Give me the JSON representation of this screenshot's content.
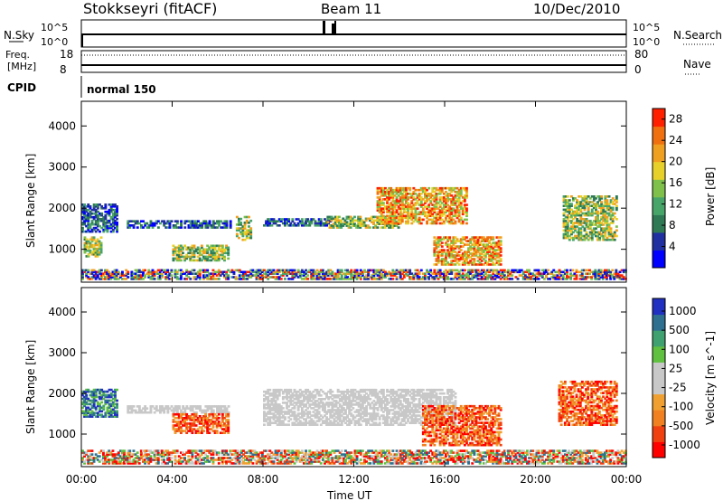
{
  "header": {
    "station": "Stokkseyri (fitACF)",
    "beam": "Beam 11",
    "date": "10/Dec/2010"
  },
  "top_panels": {
    "nsky_label": "N.Sky",
    "nsearch_label": "N.Search",
    "nsky_ticks": [
      "10^5",
      "10^0"
    ],
    "nsearch_ticks": [
      "10^5",
      "10^0"
    ],
    "freq_label_1": "Freq.",
    "freq_label_2": "[MHz]",
    "freq_ticks": [
      "18",
      "8"
    ],
    "nave_label": "Nave",
    "nave_ticks": [
      "80",
      "0"
    ],
    "cpid_label": "CPID",
    "cpid_value": "normal 150"
  },
  "colors": {
    "power_scale": [
      "#0000ff",
      "#2030a0",
      "#2f7a55",
      "#48a56a",
      "#7fc04a",
      "#e8d02a",
      "#f0a020",
      "#f07010",
      "#ff2000"
    ],
    "velocity_scale": [
      "#ff0000",
      "#f04010",
      "#f08020",
      "#f0a030",
      "#c8c8c8",
      "#c8c8c8",
      "#60c040",
      "#3fa070",
      "#2f7090",
      "#2030c0"
    ]
  },
  "chart_data": [
    {
      "type": "heatmap",
      "title": "",
      "xlabel": "",
      "ylabel": "Slant Range [km]",
      "y_ticks": [
        "1000",
        "2000",
        "3000",
        "4000"
      ],
      "ylim": [
        200,
        4600
      ],
      "xlim_hours": [
        0,
        24
      ],
      "colorbar_label": "Power [dB]",
      "colorbar_ticks": [
        "4",
        "8",
        "12",
        "16",
        "20",
        "24",
        "28"
      ],
      "colorbar_range": [
        0,
        30
      ],
      "regions": [
        {
          "t0": 0.0,
          "t1": 1.6,
          "r0": 1400,
          "r1": 2100,
          "level": "low"
        },
        {
          "t0": 0.1,
          "t1": 0.9,
          "r0": 800,
          "r1": 1300,
          "level": "mid"
        },
        {
          "t0": 2.0,
          "t1": 6.6,
          "r0": 1500,
          "r1": 1700,
          "level": "low"
        },
        {
          "t0": 4.0,
          "t1": 6.5,
          "r0": 700,
          "r1": 1100,
          "level": "mid"
        },
        {
          "t0": 6.8,
          "t1": 7.5,
          "r0": 1200,
          "r1": 1800,
          "level": "mid"
        },
        {
          "t0": 8.0,
          "t1": 11.0,
          "r0": 1550,
          "r1": 1750,
          "level": "low"
        },
        {
          "t0": 10.8,
          "t1": 14.0,
          "r0": 1500,
          "r1": 1800,
          "level": "mid"
        },
        {
          "t0": 13.0,
          "t1": 17.0,
          "r0": 1600,
          "r1": 2500,
          "level": "high"
        },
        {
          "t0": 15.5,
          "t1": 18.5,
          "r0": 600,
          "r1": 1300,
          "level": "high"
        },
        {
          "t0": 21.2,
          "t1": 23.6,
          "r0": 1200,
          "r1": 2300,
          "level": "mid"
        },
        {
          "t0": 0.0,
          "t1": 24.0,
          "r0": 250,
          "r1": 500,
          "level": "mixed"
        }
      ]
    },
    {
      "type": "heatmap",
      "title": "",
      "xlabel": "Time UT",
      "ylabel": "Slant Range [km]",
      "y_ticks": [
        "1000",
        "2000",
        "3000",
        "4000"
      ],
      "ylim": [
        200,
        4600
      ],
      "x_ticks": [
        "00:00",
        "04:00",
        "08:00",
        "12:00",
        "16:00",
        "20:00",
        "00:00"
      ],
      "xlim_hours": [
        0,
        24
      ],
      "colorbar_label": "Velocity [m s^-1]",
      "colorbar_ticks": [
        "1000",
        "500",
        "100",
        "25",
        "-25",
        "-100",
        "-500",
        "-1000"
      ],
      "regions": [
        {
          "t0": 0.0,
          "t1": 1.6,
          "r0": 1400,
          "r1": 2100,
          "level": "toward"
        },
        {
          "t0": 2.0,
          "t1": 6.6,
          "r0": 1500,
          "r1": 1700,
          "level": "ground"
        },
        {
          "t0": 4.0,
          "t1": 6.5,
          "r0": 1000,
          "r1": 1500,
          "level": "away"
        },
        {
          "t0": 8.0,
          "t1": 16.5,
          "r0": 1200,
          "r1": 2100,
          "level": "ground"
        },
        {
          "t0": 15.0,
          "t1": 18.5,
          "r0": 700,
          "r1": 1700,
          "level": "away"
        },
        {
          "t0": 21.0,
          "t1": 23.6,
          "r0": 1200,
          "r1": 2300,
          "level": "away"
        },
        {
          "t0": 0.0,
          "t1": 24.0,
          "r0": 250,
          "r1": 600,
          "level": "mixed"
        }
      ]
    }
  ]
}
